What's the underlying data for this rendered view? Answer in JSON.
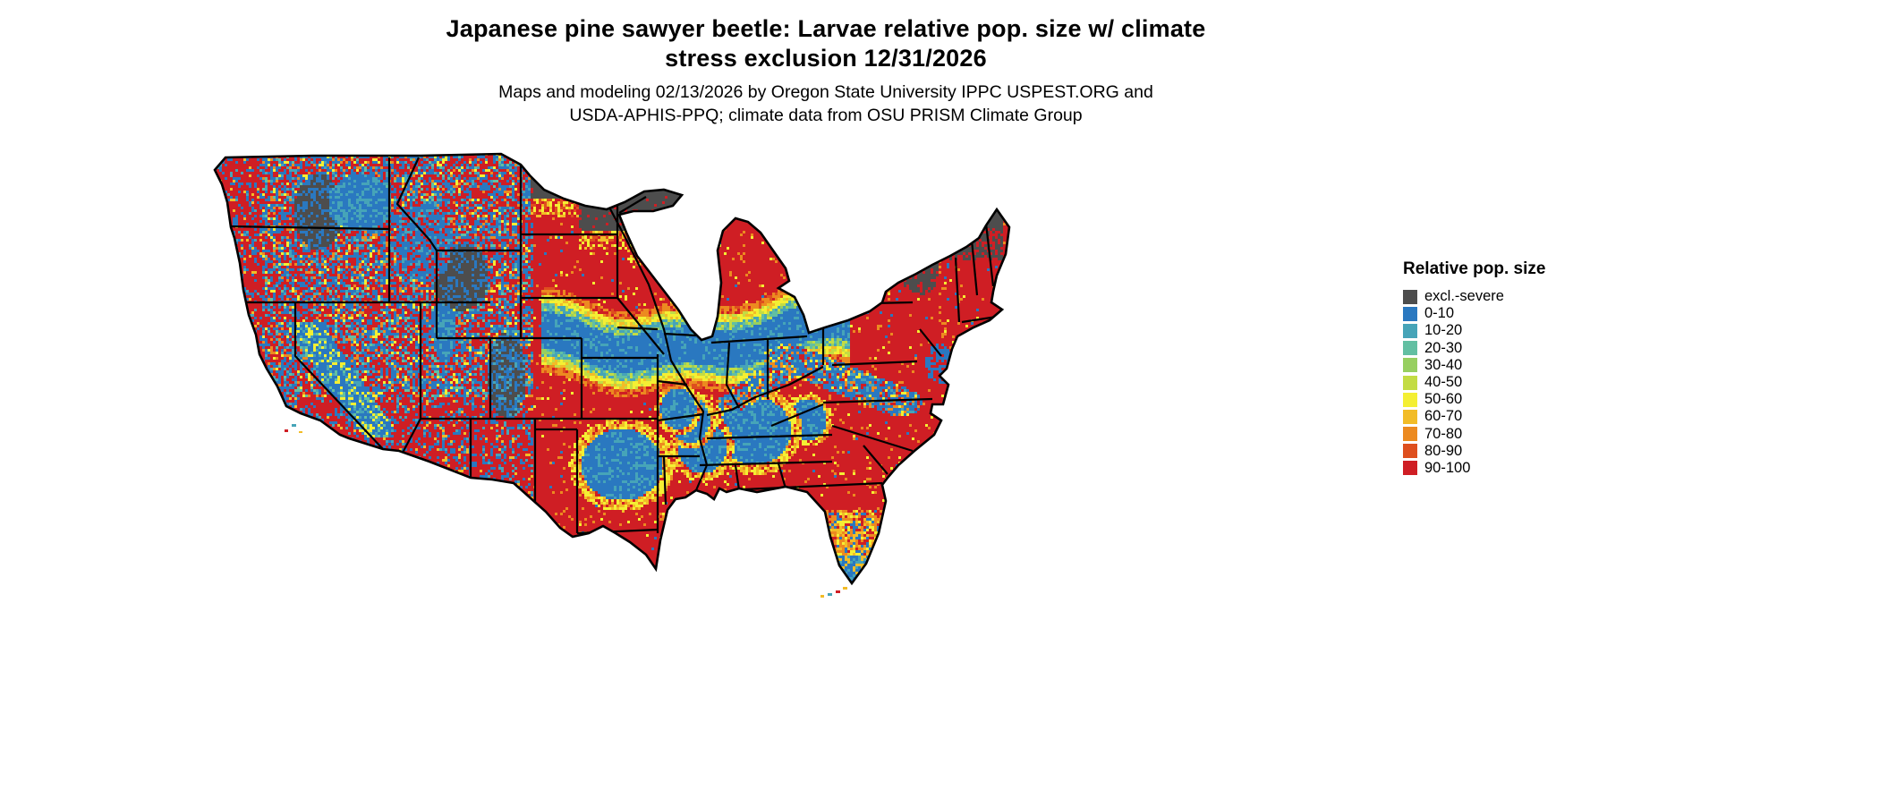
{
  "title": {
    "line1": "Japanese pine sawyer beetle: Larvae relative pop. size w/ climate",
    "line2": "stress exclusion 12/31/2026"
  },
  "subtitle": {
    "line1": "Maps and modeling 02/13/2026 by Oregon State University IPPC USPEST.ORG and",
    "line2": "USDA-APHIS-PPQ; climate data from OSU PRISM Climate Group"
  },
  "legend": {
    "title": "Relative pop. size",
    "items": [
      {
        "label": "excl.-severe",
        "color": "#4d4d4d"
      },
      {
        "label": "0-10",
        "color": "#2a78c0"
      },
      {
        "label": "10-20",
        "color": "#46a4b8"
      },
      {
        "label": "20-30",
        "color": "#62bfa2"
      },
      {
        "label": "30-40",
        "color": "#97cf60"
      },
      {
        "label": "40-50",
        "color": "#c3dc44"
      },
      {
        "label": "50-60",
        "color": "#f4ef33"
      },
      {
        "label": "60-70",
        "color": "#f2bc27"
      },
      {
        "label": "70-80",
        "color": "#ec8a20"
      },
      {
        "label": "80-90",
        "color": "#de4f1e"
      },
      {
        "label": "90-100",
        "color": "#cf1e24"
      }
    ]
  },
  "map": {
    "water_color": "#ffffff",
    "border_color": "#000000"
  }
}
